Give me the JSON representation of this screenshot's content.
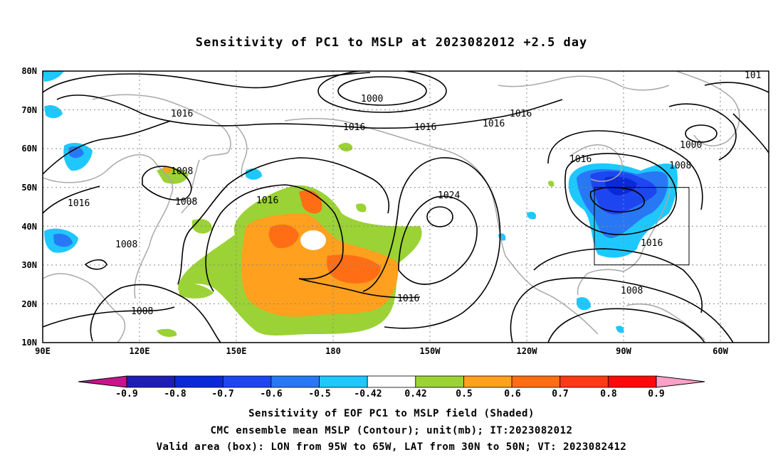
{
  "title": "Sensitivity of PC1 to MSLP at 2023082012 +2.5 day",
  "lat_labels": [
    "80N",
    "70N",
    "60N",
    "50N",
    "40N",
    "30N",
    "20N",
    "10N"
  ],
  "lon_labels": [
    "90E",
    "120E",
    "150E",
    "180",
    "150W",
    "120W",
    "90W",
    "60W"
  ],
  "contour_labels": [
    "1000",
    "1016",
    "1016",
    "1016",
    "1016",
    "1016",
    "1008",
    "1008",
    "1016",
    "1016",
    "1008",
    "1008",
    "1016",
    "1024",
    "1016",
    "1016",
    "1008",
    "1000",
    "1008",
    "101"
  ],
  "colorbar": {
    "labels": [
      "-0.9",
      "-0.8",
      "-0.7",
      "-0.6",
      "-0.5",
      "-0.42",
      "0.42",
      "0.5",
      "0.6",
      "0.7",
      "0.8",
      "0.9"
    ],
    "colors": [
      "#c8148c",
      "#1e1eb4",
      "#0a2ad8",
      "#1e46f0",
      "#2878f5",
      "#1ec8ff",
      "#ffffff",
      "#9bd235",
      "#ffa01e",
      "#ff6e14",
      "#ff3a14",
      "#ff0a0a",
      "#ffa0c8"
    ]
  },
  "valid_box": {
    "lon_from": "95W",
    "lon_to": "65W",
    "lat_from": "30N",
    "lat_to": "50N"
  },
  "captions": [
    "Sensitivity of EOF PC1 to MSLP field (Shaded)",
    "CMC ensemble mean MSLP (Contour); unit(mb); IT:2023082012",
    "Valid area (box): LON from 95W to 65W, LAT from 30N to 50N; VT: 2023082412"
  ]
}
